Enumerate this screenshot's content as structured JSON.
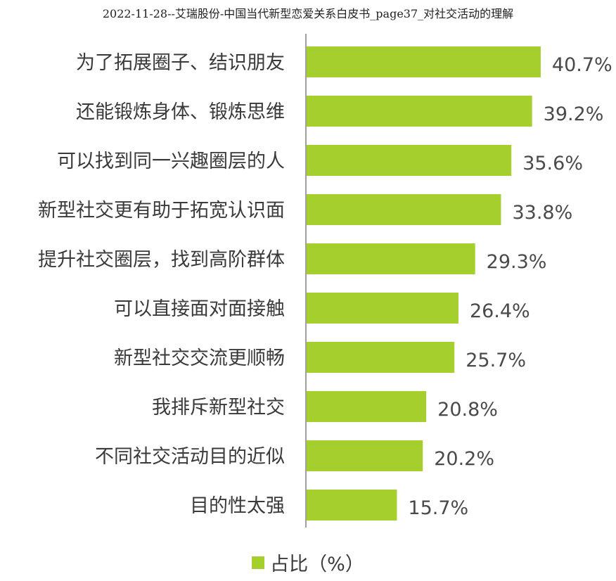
{
  "page_title": "2022-11-28--艾瑞股份-中国当代新型恋爱关系白皮书_page37_对社交活动的理解",
  "colors": {
    "bar": "#a5cf2c",
    "axis": "#a0a0a0"
  },
  "chart_data": {
    "type": "bar",
    "orientation": "horizontal",
    "categories": [
      "为了拓展圈子、结识朋友",
      "还能锻炼身体、锻炼思维",
      "可以找到同一兴趣圈层的人",
      "新型社交更有助于拓宽认识面",
      "提升社交圈层，找到高阶群体",
      "可以直接面对面接触",
      "新型社交交流更顺畅",
      "我排斥新型社交",
      "不同社交活动目的近似",
      "目的性太强"
    ],
    "values": [
      40.7,
      39.2,
      35.6,
      33.8,
      29.3,
      26.4,
      25.7,
      20.8,
      20.2,
      15.7
    ],
    "value_labels": [
      "40.7%",
      "39.2%",
      "35.6%",
      "33.8%",
      "29.3%",
      "26.4%",
      "25.7%",
      "20.8%",
      "20.2%",
      "15.7%"
    ],
    "series": [
      {
        "name": "占比（%）"
      }
    ],
    "legend_position": "bottom",
    "grid": false
  }
}
